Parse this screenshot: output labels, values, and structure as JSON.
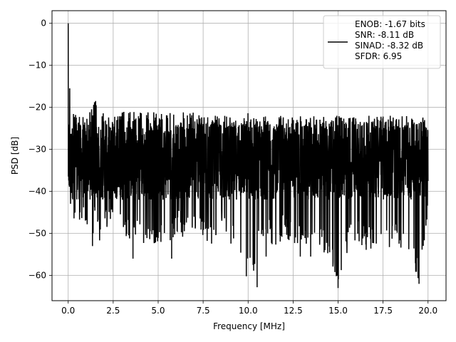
{
  "chart_data": {
    "type": "line",
    "title": "",
    "xlabel": "Frequency [MHz]",
    "ylabel": "PSD [dB]",
    "xlim": [
      -0.9,
      21.0
    ],
    "ylim": [
      -66,
      3
    ],
    "x_ticks": [
      0.0,
      2.5,
      5.0,
      7.5,
      10.0,
      12.5,
      15.0,
      17.5,
      20.0
    ],
    "x_tick_labels": [
      "0.0",
      "2.5",
      "5.0",
      "7.5",
      "10.0",
      "12.5",
      "15.0",
      "17.5",
      "20.0"
    ],
    "y_ticks": [
      0,
      -10,
      -20,
      -30,
      -40,
      -50,
      -60
    ],
    "y_tick_labels": [
      "0",
      "−10",
      "−20",
      "−30",
      "−40",
      "−50",
      "−60"
    ],
    "grid": true,
    "legend_position": "top-right",
    "series": [
      {
        "name": "ENOB: -1.67 bits\nSNR: -8.11 dB\nSINAD: -8.32 dB\nSFDR: 6.95",
        "color": "#000000",
        "x": [
          0.0,
          0.02,
          0.05,
          0.1,
          0.15,
          0.2,
          0.3,
          0.4,
          0.5,
          0.6,
          0.8,
          1.0,
          1.3,
          1.5,
          1.7,
          2.0,
          2.5,
          3.0,
          3.5,
          4.0,
          4.5,
          5.0,
          5.5,
          6.0,
          6.5,
          7.0,
          7.5,
          8.0,
          8.5,
          9.0,
          9.5,
          10.0,
          10.4,
          10.5,
          11.0,
          11.5,
          12.0,
          12.5,
          13.0,
          13.5,
          14.0,
          14.5,
          15.0,
          15.5,
          16.0,
          16.5,
          17.0,
          17.5,
          18.0,
          18.5,
          19.0,
          19.5,
          20.0
        ],
        "y": [
          0,
          -9,
          -12,
          -15,
          -17,
          -19,
          -20,
          -21,
          -22,
          -22,
          -21,
          -22,
          -20,
          -18,
          -21,
          -21,
          -22,
          -21,
          -21,
          -21,
          -21,
          -21,
          -21,
          -22,
          -21,
          -21,
          -22,
          -22,
          -22,
          -22,
          -22,
          -21,
          -22,
          -22,
          -22,
          -22,
          -22,
          -22,
          -22,
          -22,
          -22,
          -22,
          -22,
          -22,
          -22,
          -22,
          -22,
          -22,
          -22,
          -22,
          -22,
          -22,
          -22
        ],
        "noise_floor": [
          -33,
          -33,
          -33,
          -33,
          -33,
          -33,
          -33,
          -33,
          -33,
          -33,
          -33,
          -33,
          -33,
          -33,
          -33,
          -33,
          -33,
          -33,
          -33,
          -33,
          -33,
          -33,
          -33,
          -33,
          -33,
          -33,
          -33,
          -33,
          -33,
          -33,
          -33,
          -33,
          -33,
          -33,
          -33,
          -33,
          -33,
          -33,
          -33,
          -33,
          -33,
          -33,
          -33,
          -33,
          -33,
          -33,
          -33,
          -33,
          -33,
          -33,
          -33,
          -33,
          -33
        ],
        "low_envelope": [
          -33,
          -42,
          -44,
          -43,
          -46,
          -47,
          -50,
          -48,
          -48,
          -47,
          -50,
          -47,
          -53,
          -47,
          -52,
          -50,
          -48,
          -50,
          -52,
          -53,
          -53,
          -52,
          -55,
          -50,
          -52,
          -50,
          -52,
          -53,
          -50,
          -53,
          -54,
          -60,
          -63,
          -56,
          -52,
          -54,
          -51,
          -54,
          -52,
          -56,
          -54,
          -56,
          -63,
          -55,
          -52,
          -54,
          -54,
          -54,
          -53,
          -55,
          -55,
          -62,
          -46
        ],
        "min_points": [
          {
            "x": 1.35,
            "y": -53
          },
          {
            "x": 3.6,
            "y": -56
          },
          {
            "x": 5.75,
            "y": -56
          },
          {
            "x": 9.9,
            "y": -60.2
          },
          {
            "x": 10.5,
            "y": -62.8
          },
          {
            "x": 11.0,
            "y": -55.5
          },
          {
            "x": 12.9,
            "y": -55.5
          },
          {
            "x": 15.0,
            "y": -63
          },
          {
            "x": 19.5,
            "y": -62
          }
        ]
      }
    ]
  }
}
